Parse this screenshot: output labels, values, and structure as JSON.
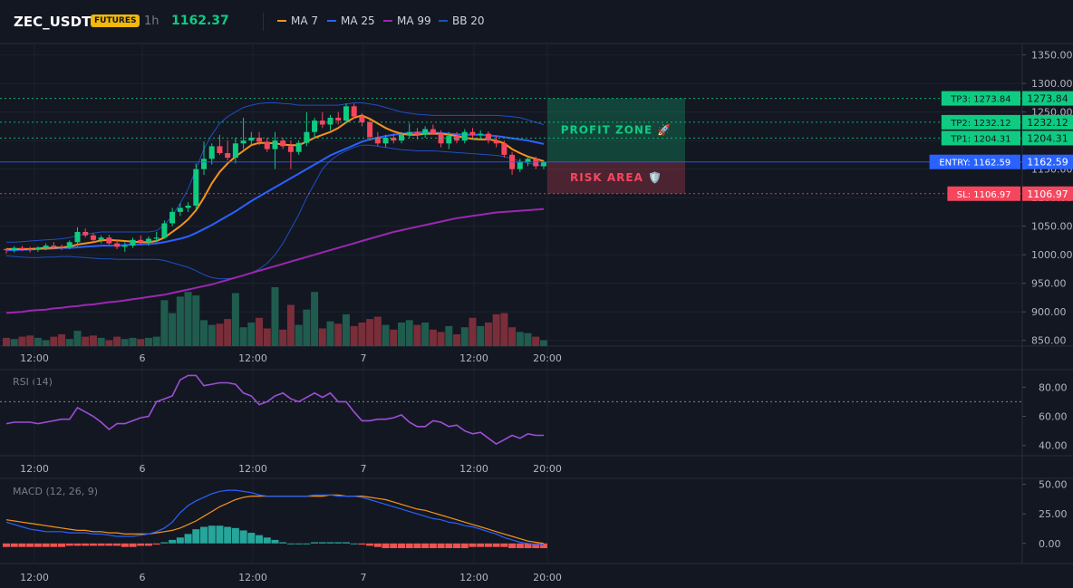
{
  "header": {
    "symbol": "ZEC_USDT",
    "badge": "FUTURES",
    "timeframe": "1h",
    "last_price": "1162.37",
    "legend": [
      {
        "label": "MA 7",
        "color": "#f7931a"
      },
      {
        "label": "MA 25",
        "color": "#2962ff"
      },
      {
        "label": "MA 99",
        "color": "#9c27b0"
      },
      {
        "label": "BB 20",
        "color": "#1e4fbf"
      }
    ]
  },
  "colors": {
    "up": "#0ecb81",
    "down": "#f6465d",
    "bg": "#131722",
    "grid": "#1e222d",
    "text": "#b2b5be"
  },
  "chart_data": [
    {
      "type": "candlestick",
      "title": "",
      "x_tick_labels": [
        "12:00",
        "6",
        "12:00",
        "7",
        "12:00",
        "20:00"
      ],
      "y_ticks": [
        850,
        900,
        950,
        1000,
        1050,
        1100,
        1150,
        1200,
        1250,
        1300,
        1350
      ],
      "y_tick_labels": [
        "850.00",
        "900.00",
        "950.00",
        "1000.00",
        "1050.00",
        "1100.00",
        "1150.00",
        "1200.00",
        "1250.00",
        "1300.00",
        "1350.00"
      ],
      "ylim": [
        840,
        1370
      ],
      "series_labels": [
        "MA 7",
        "MA 25",
        "MA 99",
        "BB 20"
      ],
      "candles": [
        [
          1010,
          1012,
          1002,
          1008
        ],
        [
          1008,
          1015,
          1004,
          1012
        ],
        [
          1012,
          1016,
          1006,
          1010
        ],
        [
          1010,
          1014,
          1004,
          1009
        ],
        [
          1009,
          1015,
          1005,
          1012
        ],
        [
          1012,
          1020,
          1008,
          1016
        ],
        [
          1016,
          1022,
          1010,
          1014
        ],
        [
          1014,
          1018,
          1008,
          1013
        ],
        [
          1013,
          1025,
          1010,
          1022
        ],
        [
          1022,
          1048,
          1015,
          1040
        ],
        [
          1040,
          1046,
          1030,
          1034
        ],
        [
          1034,
          1038,
          1022,
          1026
        ],
        [
          1026,
          1034,
          1020,
          1030
        ],
        [
          1030,
          1035,
          1018,
          1020
        ],
        [
          1020,
          1026,
          1010,
          1014
        ],
        [
          1014,
          1022,
          1005,
          1016
        ],
        [
          1016,
          1030,
          1012,
          1026
        ],
        [
          1026,
          1034,
          1018,
          1022
        ],
        [
          1022,
          1032,
          1016,
          1028
        ],
        [
          1028,
          1040,
          1022,
          1030
        ],
        [
          1030,
          1060,
          1028,
          1055
        ],
        [
          1055,
          1082,
          1050,
          1075
        ],
        [
          1075,
          1090,
          1068,
          1082
        ],
        [
          1082,
          1092,
          1075,
          1086
        ],
        [
          1086,
          1160,
          1080,
          1150
        ],
        [
          1150,
          1198,
          1140,
          1168
        ],
        [
          1168,
          1195,
          1158,
          1190
        ],
        [
          1190,
          1210,
          1175,
          1178
        ],
        [
          1178,
          1200,
          1165,
          1170
        ],
        [
          1170,
          1205,
          1160,
          1195
        ],
        [
          1195,
          1240,
          1185,
          1200
        ],
        [
          1200,
          1215,
          1190,
          1205
        ],
        [
          1205,
          1215,
          1192,
          1198
        ],
        [
          1198,
          1205,
          1180,
          1185
        ],
        [
          1185,
          1215,
          1150,
          1200
        ],
        [
          1200,
          1205,
          1185,
          1190
        ],
        [
          1190,
          1200,
          1150,
          1180
        ],
        [
          1180,
          1200,
          1175,
          1196
        ],
        [
          1196,
          1250,
          1190,
          1215
        ],
        [
          1215,
          1240,
          1205,
          1235
        ],
        [
          1235,
          1250,
          1222,
          1228
        ],
        [
          1228,
          1245,
          1218,
          1240
        ],
        [
          1240,
          1250,
          1228,
          1235
        ],
        [
          1235,
          1265,
          1230,
          1260
        ],
        [
          1260,
          1265,
          1238,
          1242
        ],
        [
          1242,
          1248,
          1225,
          1232
        ],
        [
          1232,
          1236,
          1200,
          1206
        ],
        [
          1206,
          1215,
          1190,
          1195
        ],
        [
          1195,
          1210,
          1188,
          1205
        ],
        [
          1205,
          1212,
          1195,
          1200
        ],
        [
          1200,
          1215,
          1195,
          1210
        ],
        [
          1210,
          1230,
          1205,
          1215
        ],
        [
          1215,
          1222,
          1202,
          1210
        ],
        [
          1210,
          1225,
          1205,
          1220
        ],
        [
          1220,
          1228,
          1210,
          1212
        ],
        [
          1212,
          1218,
          1188,
          1195
        ],
        [
          1195,
          1215,
          1185,
          1208
        ],
        [
          1208,
          1215,
          1195,
          1200
        ],
        [
          1200,
          1220,
          1195,
          1215
        ],
        [
          1215,
          1222,
          1205,
          1210
        ],
        [
          1210,
          1218,
          1202,
          1212
        ],
        [
          1212,
          1216,
          1195,
          1200
        ],
        [
          1200,
          1208,
          1188,
          1195
        ],
        [
          1195,
          1200,
          1170,
          1175
        ],
        [
          1175,
          1180,
          1140,
          1150
        ],
        [
          1150,
          1168,
          1145,
          1162
        ],
        [
          1162,
          1172,
          1155,
          1168
        ],
        [
          1168,
          1172,
          1150,
          1155
        ],
        [
          1155,
          1165,
          1150,
          1162
        ]
      ],
      "volume": [
        14,
        12,
        16,
        18,
        14,
        10,
        16,
        20,
        12,
        26,
        16,
        18,
        14,
        10,
        16,
        12,
        14,
        12,
        14,
        16,
        78,
        56,
        84,
        92,
        86,
        44,
        36,
        38,
        46,
        90,
        32,
        40,
        48,
        30,
        100,
        28,
        70,
        36,
        62,
        92,
        30,
        42,
        38,
        54,
        34,
        40,
        46,
        50,
        36,
        28,
        40,
        44,
        36,
        40,
        28,
        24,
        34,
        20,
        32,
        48,
        34,
        40,
        54,
        56,
        32,
        24,
        22,
        16,
        10
      ],
      "ma7": [
        1010,
        1010,
        1010,
        1010,
        1011,
        1012,
        1012,
        1013,
        1014,
        1018,
        1020,
        1022,
        1025,
        1026,
        1025,
        1024,
        1023,
        1022,
        1022,
        1024,
        1030,
        1040,
        1050,
        1062,
        1078,
        1100,
        1125,
        1145,
        1160,
        1172,
        1182,
        1192,
        1196,
        1196,
        1195,
        1193,
        1192,
        1192,
        1198,
        1205,
        1210,
        1215,
        1222,
        1232,
        1240,
        1244,
        1238,
        1230,
        1222,
        1216,
        1212,
        1210,
        1210,
        1212,
        1212,
        1212,
        1210,
        1208,
        1205,
        1203,
        1202,
        1202,
        1200,
        1195,
        1185,
        1178,
        1172,
        1168,
        1164
      ],
      "ma25": [
        1008,
        1008,
        1009,
        1009,
        1010,
        1010,
        1011,
        1012,
        1012,
        1013,
        1014,
        1015,
        1016,
        1016,
        1016,
        1017,
        1018,
        1018,
        1019,
        1020,
        1022,
        1025,
        1028,
        1032,
        1038,
        1045,
        1052,
        1060,
        1068,
        1076,
        1085,
        1094,
        1102,
        1110,
        1118,
        1126,
        1134,
        1142,
        1150,
        1158,
        1166,
        1174,
        1180,
        1186,
        1192,
        1198,
        1202,
        1205,
        1208,
        1210,
        1212,
        1213,
        1214,
        1214,
        1214,
        1213,
        1212,
        1211,
        1210,
        1210,
        1210,
        1209,
        1208,
        1206,
        1204,
        1202,
        1200,
        1197,
        1194
      ],
      "ma99": [
        898,
        899,
        900,
        902,
        903,
        904,
        906,
        907,
        909,
        910,
        912,
        913,
        915,
        917,
        918,
        920,
        922,
        924,
        926,
        928,
        930,
        933,
        936,
        939,
        942,
        945,
        948,
        952,
        956,
        960,
        964,
        968,
        972,
        976,
        980,
        984,
        988,
        992,
        996,
        1000,
        1004,
        1008,
        1012,
        1016,
        1020,
        1024,
        1028,
        1032,
        1036,
        1040,
        1043,
        1046,
        1049,
        1052,
        1055,
        1058,
        1061,
        1064,
        1066,
        1068,
        1070,
        1072,
        1074,
        1075,
        1076,
        1077,
        1078,
        1079,
        1080
      ],
      "bb_upper": [
        1022,
        1022,
        1023,
        1024,
        1025,
        1026,
        1027,
        1028,
        1030,
        1034,
        1036,
        1038,
        1040,
        1040,
        1040,
        1040,
        1040,
        1040,
        1040,
        1042,
        1052,
        1068,
        1090,
        1115,
        1150,
        1185,
        1210,
        1230,
        1242,
        1250,
        1258,
        1262,
        1265,
        1266,
        1266,
        1265,
        1264,
        1262,
        1262,
        1262,
        1262,
        1262,
        1262,
        1264,
        1266,
        1266,
        1264,
        1262,
        1258,
        1254,
        1250,
        1248,
        1246,
        1245,
        1244,
        1244,
        1244,
        1244,
        1244,
        1244,
        1244,
        1244,
        1244,
        1243,
        1242,
        1240,
        1236,
        1232,
        1228
      ],
      "bb_lower": [
        998,
        997,
        996,
        995,
        995,
        996,
        996,
        997,
        997,
        996,
        995,
        994,
        993,
        993,
        992,
        992,
        992,
        992,
        992,
        992,
        990,
        986,
        982,
        978,
        972,
        965,
        960,
        958,
        958,
        960,
        964,
        968,
        975,
        985,
        1000,
        1020,
        1045,
        1070,
        1100,
        1125,
        1150,
        1165,
        1175,
        1182,
        1188,
        1192,
        1192,
        1190,
        1188,
        1186,
        1184,
        1183,
        1182,
        1182,
        1182,
        1181,
        1180,
        1179,
        1178,
        1177,
        1176,
        1175,
        1174,
        1172,
        1168,
        1164,
        1160,
        1158,
        1156
      ],
      "levels": [
        {
          "label": "TP3: 1273.84",
          "value": 1273.84,
          "price_label": "1273.84",
          "color": "#0ecb81"
        },
        {
          "label": "TP2: 1232.12",
          "value": 1232.12,
          "price_label": "1232.12",
          "color": "#0ecb81"
        },
        {
          "label": "TP1: 1204.31",
          "value": 1204.31,
          "price_label": "1204.31",
          "color": "#0ecb81"
        },
        {
          "label": "ENTRY: 1162.59",
          "value": 1162.59,
          "price_label": "1162.59",
          "color": "#2962ff"
        },
        {
          "label": "SL: 1106.97",
          "value": 1106.97,
          "price_label": "1106.97",
          "color": "#f6465d"
        }
      ],
      "zones": {
        "profit": "PROFIT ZONE 🚀",
        "risk": "RISK AREA 🛡️"
      }
    },
    {
      "type": "line",
      "title": "RSI (14)",
      "y_ticks": [
        40,
        60,
        80
      ],
      "y_tick_labels": [
        "40.00",
        "60.00",
        "80.00"
      ],
      "ylim": [
        33,
        92
      ],
      "threshold": 70,
      "values": [
        55,
        56,
        56,
        56,
        55,
        56,
        57,
        58,
        58,
        66,
        63,
        60,
        56,
        51,
        55,
        55,
        57,
        59,
        60,
        70,
        72,
        74,
        85,
        88,
        88,
        81,
        82,
        83,
        83,
        82,
        76,
        74,
        68,
        70,
        74,
        76,
        72,
        70,
        73,
        76,
        73,
        76,
        70,
        70,
        63,
        57,
        57,
        58,
        58,
        59,
        61,
        56,
        53,
        53,
        57,
        56,
        53,
        54,
        50,
        48,
        49,
        45,
        41,
        44,
        47,
        45,
        48,
        47,
        47
      ]
    },
    {
      "type": "bar+line",
      "title": "MACD (12, 26, 9)",
      "y_ticks": [
        0,
        25,
        50
      ],
      "y_tick_labels": [
        "0.00",
        "25.00",
        "50.00"
      ],
      "ylim": [
        -17,
        55
      ],
      "macd": [
        18,
        16,
        14,
        12,
        11,
        10,
        10,
        10,
        9,
        9,
        9,
        8,
        8,
        7,
        6,
        6,
        6,
        7,
        8,
        10,
        13,
        18,
        26,
        32,
        36,
        39,
        42,
        44,
        45,
        45,
        44,
        43,
        41,
        40,
        40,
        40,
        40,
        40,
        40,
        41,
        41,
        41,
        40,
        40,
        40,
        39,
        37,
        35,
        33,
        31,
        29,
        27,
        25,
        23,
        21,
        20,
        18,
        17,
        15,
        14,
        12,
        10,
        8,
        5,
        3,
        1,
        0,
        -1,
        -1
      ],
      "signal": [
        20,
        19,
        18,
        17,
        16,
        15,
        14,
        13,
        12,
        11,
        11,
        10,
        10,
        9,
        9,
        8,
        8,
        8,
        8,
        9,
        10,
        11,
        13,
        16,
        19,
        23,
        27,
        31,
        34,
        37,
        39,
        40,
        40,
        40,
        40,
        40,
        40,
        40,
        40,
        40,
        40,
        41,
        41,
        40,
        40,
        40,
        39,
        38,
        37,
        35,
        33,
        31,
        29,
        28,
        26,
        24,
        22,
        20,
        18,
        16,
        14,
        12,
        10,
        8,
        6,
        4,
        2,
        1,
        0
      ],
      "hist": [
        -3,
        -3,
        -3,
        -3,
        -3,
        -3,
        -3,
        -3,
        -2,
        -2,
        -2,
        -2,
        -2,
        -2,
        -2,
        -3,
        -3,
        -2,
        -2,
        -1,
        1,
        3,
        5,
        8,
        12,
        14,
        15,
        15,
        14,
        13,
        11,
        9,
        7,
        5,
        3,
        1,
        0,
        0,
        0,
        1,
        1,
        1,
        1,
        1,
        0,
        -1,
        -2,
        -3,
        -4,
        -4,
        -4,
        -4,
        -4,
        -4,
        -4,
        -4,
        -4,
        -4,
        -4,
        -3,
        -3,
        -3,
        -3,
        -3,
        -4,
        -4,
        -4,
        -4,
        -4
      ]
    }
  ]
}
